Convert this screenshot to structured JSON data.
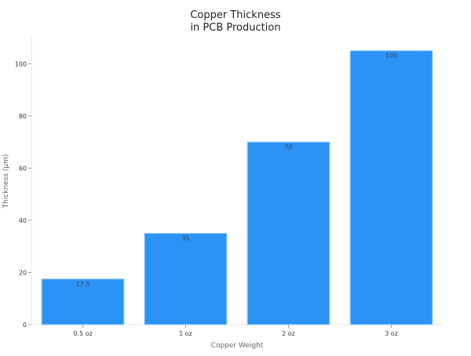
{
  "chart_data": {
    "type": "bar",
    "title": "Copper Thickness\nin PCB Production",
    "xlabel": "Copper Weight",
    "ylabel": "Thickness (µm)",
    "categories": [
      "0.5 oz",
      "1 oz",
      "2 oz",
      "3 oz"
    ],
    "values": [
      17.5,
      35,
      70,
      105
    ],
    "data_labels": [
      "17.5",
      "35",
      "70",
      "105"
    ],
    "yticks": [
      0,
      20,
      40,
      60,
      80,
      100
    ],
    "ylim": [
      0,
      110
    ],
    "grid": false,
    "bar_color": "#2b93f5",
    "bar_edge_color": "#9fd0fb"
  }
}
